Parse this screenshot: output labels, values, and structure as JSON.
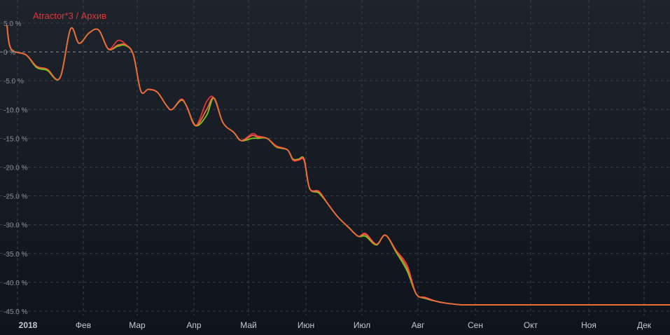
{
  "colors": {
    "background_top": "#1e232c",
    "background_bottom": "#0f141c",
    "title": "#e0383a",
    "tick_label": "#8a8f98",
    "month_label": "#c4c8ce",
    "series_red": "#e0383a",
    "series_green": "#6fcf1f",
    "series_orange": "#f2683a"
  },
  "chart_data": {
    "type": "line",
    "title": "Atractor*3 / Архив",
    "xlabel": "",
    "ylabel": "",
    "y_unit": "%",
    "ylim": [
      -45.5,
      6.5
    ],
    "grid": true,
    "legend": "none",
    "y_ticks": [
      "5.0 %",
      "0 %",
      "-5.0 %",
      "-10.0 %",
      "-15.0 %",
      "-20.0 %",
      "-25.0 %",
      "-30.0 %",
      "-35.0 %",
      "-40.0 %",
      "-45.0 %"
    ],
    "y_tick_values": [
      5,
      0,
      -5,
      -10,
      -15,
      -20,
      -25,
      -30,
      -35,
      -40,
      -45
    ],
    "x_ticks": [
      "2018",
      "Фев",
      "Мар",
      "Апр",
      "Май",
      "Июн",
      "Июл",
      "Авг",
      "Сен",
      "Окт",
      "Ноя",
      "Дек"
    ],
    "x_tick_dates": [
      "2018-01-01",
      "2018-02-01",
      "2018-03-01",
      "2018-04-01",
      "2018-05-01",
      "2018-06-01",
      "2018-07-01",
      "2018-08-01",
      "2018-09-01",
      "2018-10-01",
      "2018-11-01",
      "2018-12-01"
    ],
    "x_end": "2018-12-15",
    "series": [
      {
        "color_key": "series_red",
        "x": [
          "2017-12-24",
          "2017-12-29",
          "2018-01-05",
          "2018-01-10",
          "2018-01-15",
          "2018-01-21",
          "2018-01-26",
          "2018-01-30",
          "2018-02-04",
          "2018-02-09",
          "2018-02-14",
          "2018-02-19",
          "2018-02-23",
          "2018-02-27",
          "2018-03-03",
          "2018-03-07",
          "2018-03-12",
          "2018-03-17",
          "2018-03-20",
          "2018-03-25",
          "2018-03-28",
          "2018-04-02",
          "2018-04-08",
          "2018-04-12",
          "2018-04-17",
          "2018-04-23",
          "2018-04-27",
          "2018-05-03",
          "2018-05-06",
          "2018-05-11",
          "2018-05-16",
          "2018-05-22",
          "2018-05-25",
          "2018-05-28",
          "2018-05-31",
          "2018-06-03",
          "2018-06-08",
          "2018-06-13",
          "2018-06-18",
          "2018-06-24",
          "2018-06-29",
          "2018-07-03",
          "2018-07-09",
          "2018-07-14",
          "2018-07-20",
          "2018-07-26",
          "2018-07-31",
          "2018-08-05",
          "2018-08-11",
          "2018-08-16",
          "2018-08-21",
          "2018-08-25",
          "2018-08-30",
          "2018-09-03",
          "2018-09-07",
          "2018-09-12",
          "2018-09-17",
          "2018-09-22",
          "2018-09-27",
          "2018-10-02",
          "2018-10-06",
          "2018-10-11",
          "2018-10-15",
          "2018-10-19",
          "2018-10-23",
          "2018-10-28",
          "2018-11-02",
          "2018-11-05",
          "2018-11-08",
          "2018-11-13",
          "2018-11-18",
          "2018-11-23",
          "2018-11-28",
          "2018-12-03",
          "2018-12-09",
          "2018-12-15"
        ],
        "y": [
          4.5,
          0.5,
          -0.5,
          -2.5,
          -3.0,
          -4.5,
          4.0,
          1.5,
          3.3,
          3.8,
          0.5,
          2.0,
          1.3,
          -0.5,
          -6.8,
          -6.5,
          -7.0,
          -9.3,
          -10.0,
          -8.2,
          -9.4,
          -12.8,
          -8.6,
          -8.0,
          -12.3,
          -14.0,
          -15.4,
          -14.2,
          -14.6,
          -15.0,
          -16.3,
          -17.0,
          -18.8,
          -18.8,
          -18.9,
          -23.7,
          -24.2,
          -26.5,
          -28.6,
          -30.5,
          -32.0,
          -31.5,
          -33.4,
          -31.8,
          -34.5,
          -37.0,
          -42.0,
          -42.6,
          -43.3,
          -43.6,
          -43.8,
          -43.9,
          -43.9,
          -43.9,
          -43.9,
          -43.9,
          -43.9,
          -43.9,
          -43.9,
          -43.9,
          -43.9,
          -43.9,
          -43.9,
          -43.9,
          -43.9,
          -43.9,
          -43.9,
          -43.9,
          -43.9,
          -43.9,
          -43.9,
          -43.9,
          -43.9,
          -43.9,
          -43.9,
          -43.9
        ]
      },
      {
        "color_key": "series_green",
        "x": [
          "2017-12-24",
          "2017-12-29",
          "2018-01-05",
          "2018-01-10",
          "2018-01-15",
          "2018-01-21",
          "2018-01-26",
          "2018-01-30",
          "2018-02-04",
          "2018-02-09",
          "2018-02-14",
          "2018-02-19",
          "2018-02-23",
          "2018-02-27",
          "2018-03-03",
          "2018-03-07",
          "2018-03-12",
          "2018-03-17",
          "2018-03-20",
          "2018-03-25",
          "2018-03-28",
          "2018-04-02",
          "2018-04-08",
          "2018-04-12",
          "2018-04-17",
          "2018-04-23",
          "2018-04-27",
          "2018-05-03",
          "2018-05-06",
          "2018-05-11",
          "2018-05-16",
          "2018-05-22",
          "2018-05-25",
          "2018-05-28",
          "2018-05-31",
          "2018-06-03",
          "2018-06-08",
          "2018-06-13",
          "2018-06-18",
          "2018-06-24",
          "2018-06-29",
          "2018-07-03",
          "2018-07-09",
          "2018-07-14",
          "2018-07-20",
          "2018-07-26",
          "2018-07-31",
          "2018-08-05",
          "2018-08-11",
          "2018-08-16",
          "2018-08-21",
          "2018-08-25",
          "2018-08-30",
          "2018-09-03",
          "2018-09-07",
          "2018-09-12",
          "2018-09-17",
          "2018-09-22",
          "2018-09-27",
          "2018-10-02",
          "2018-10-06",
          "2018-10-11",
          "2018-10-15",
          "2018-10-19",
          "2018-10-23",
          "2018-10-28",
          "2018-11-02",
          "2018-11-05",
          "2018-11-08",
          "2018-11-13",
          "2018-11-18",
          "2018-11-23",
          "2018-11-28",
          "2018-12-03",
          "2018-12-09",
          "2018-12-15"
        ],
        "y": [
          4.5,
          0.5,
          -0.5,
          -2.7,
          -3.2,
          -4.5,
          4.0,
          1.5,
          3.3,
          3.8,
          0.5,
          1.0,
          1.1,
          -0.5,
          -6.8,
          -6.5,
          -7.0,
          -9.3,
          -10.0,
          -8.4,
          -9.4,
          -12.8,
          -11.0,
          -8.0,
          -12.3,
          -14.0,
          -15.4,
          -15.0,
          -15.0,
          -15.0,
          -16.5,
          -17.0,
          -18.6,
          -18.6,
          -18.6,
          -23.7,
          -24.5,
          -26.5,
          -28.6,
          -30.5,
          -32.0,
          -32.0,
          -33.5,
          -31.8,
          -34.8,
          -38.0,
          -42.0,
          -42.8,
          -43.3,
          -43.6,
          -43.8,
          -43.9,
          -43.9,
          -43.9,
          -43.9,
          -43.9,
          -43.9,
          -43.9,
          -43.9,
          -43.9,
          -43.9,
          -43.9,
          -43.9,
          -43.9,
          -43.9,
          -43.9,
          -43.9,
          -43.9,
          -43.9,
          -43.9,
          -43.9,
          -43.9,
          -43.9,
          -43.9,
          -43.9,
          -43.9
        ]
      },
      {
        "color_key": "series_orange",
        "x": [
          "2017-12-24",
          "2017-12-29",
          "2018-01-05",
          "2018-01-10",
          "2018-01-15",
          "2018-01-21",
          "2018-01-26",
          "2018-01-30",
          "2018-02-04",
          "2018-02-09",
          "2018-02-14",
          "2018-02-19",
          "2018-02-23",
          "2018-02-27",
          "2018-03-03",
          "2018-03-07",
          "2018-03-12",
          "2018-03-17",
          "2018-03-20",
          "2018-03-25",
          "2018-03-28",
          "2018-04-02",
          "2018-04-08",
          "2018-04-12",
          "2018-04-17",
          "2018-04-23",
          "2018-04-27",
          "2018-05-03",
          "2018-05-06",
          "2018-05-11",
          "2018-05-16",
          "2018-05-22",
          "2018-05-25",
          "2018-05-28",
          "2018-05-31",
          "2018-06-03",
          "2018-06-08",
          "2018-06-13",
          "2018-06-18",
          "2018-06-24",
          "2018-06-29",
          "2018-07-03",
          "2018-07-09",
          "2018-07-14",
          "2018-07-20",
          "2018-07-26",
          "2018-07-31",
          "2018-08-05",
          "2018-08-11",
          "2018-08-16",
          "2018-08-21",
          "2018-08-25",
          "2018-08-30",
          "2018-09-03",
          "2018-09-07",
          "2018-09-12",
          "2018-09-17",
          "2018-09-22",
          "2018-09-27",
          "2018-10-02",
          "2018-10-06",
          "2018-10-11",
          "2018-10-15",
          "2018-10-19",
          "2018-10-23",
          "2018-10-28",
          "2018-11-02",
          "2018-11-05",
          "2018-11-08",
          "2018-11-13",
          "2018-11-18",
          "2018-11-23",
          "2018-11-28",
          "2018-12-03",
          "2018-12-09",
          "2018-12-15"
        ],
        "y": [
          4.5,
          0.5,
          -0.5,
          -2.5,
          -3.0,
          -4.5,
          4.0,
          1.5,
          3.3,
          3.8,
          0.5,
          1.2,
          1.2,
          -0.5,
          -6.8,
          -6.5,
          -7.0,
          -9.3,
          -10.0,
          -8.3,
          -9.4,
          -12.8,
          -10.0,
          -8.0,
          -12.3,
          -14.0,
          -15.4,
          -14.5,
          -14.8,
          -15.0,
          -16.4,
          -17.0,
          -18.7,
          -18.7,
          -18.7,
          -23.7,
          -24.3,
          -26.5,
          -28.6,
          -30.5,
          -32.0,
          -31.7,
          -33.4,
          -31.8,
          -34.6,
          -37.5,
          -42.0,
          -42.7,
          -43.3,
          -43.6,
          -43.8,
          -43.9,
          -43.9,
          -43.9,
          -43.9,
          -43.9,
          -43.9,
          -43.9,
          -43.9,
          -43.9,
          -43.9,
          -43.9,
          -43.9,
          -43.9,
          -43.9,
          -43.9,
          -43.9,
          -43.9,
          -43.9,
          -43.9,
          -43.9,
          -43.9,
          -43.9,
          -43.9,
          -43.9,
          -43.9
        ]
      }
    ]
  }
}
